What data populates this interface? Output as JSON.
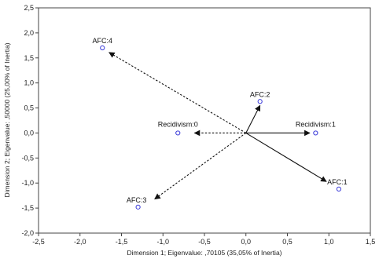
{
  "chart_data": {
    "type": "scatter",
    "title": "",
    "xlabel": "Dimension 1; Eigenvalue: ,70105 (35,05% of Inertia)",
    "ylabel": "Dimension 2; Eigenvalue: ,50000 (25,00% of Inertia)",
    "xlim": [
      -2.5,
      1.5
    ],
    "ylim": [
      -2.0,
      2.5
    ],
    "xticks": [
      -2.5,
      -2.0,
      -1.5,
      -1.0,
      -0.5,
      0.0,
      0.5,
      1.0,
      1.5
    ],
    "yticks": [
      -2.0,
      -1.5,
      -1.0,
      -0.5,
      0.0,
      0.5,
      1.0,
      1.5,
      2.0,
      2.5
    ],
    "xtick_labels": [
      "-2,5",
      "-2,0",
      "-1,5",
      "-1,0",
      "-0,5",
      "0,0",
      "0,5",
      "1,0",
      "1,5"
    ],
    "ytick_labels": [
      "-2,0",
      "-1,5",
      "-1,0",
      "-0,5",
      "0,0",
      "0,5",
      "1,0",
      "1,5",
      "2,0",
      "2,5"
    ],
    "grid": false,
    "points": [
      {
        "label": "AFC:4",
        "x": -1.73,
        "y": 1.7,
        "arrow_style": "dashed",
        "arrow_tip": [
          -1.65,
          1.61
        ]
      },
      {
        "label": "AFC:2",
        "x": 0.17,
        "y": 0.63,
        "arrow_style": "solid",
        "arrow_tip": [
          0.17,
          0.55
        ]
      },
      {
        "label": "Recidivism:0",
        "x": -0.82,
        "y": 0.0,
        "arrow_style": "dashed",
        "arrow_tip": [
          -0.62,
          0.0
        ]
      },
      {
        "label": "Recidivism:1",
        "x": 0.84,
        "y": 0.0,
        "arrow_style": "solid",
        "arrow_tip": [
          0.77,
          0.0
        ]
      },
      {
        "label": "AFC:1",
        "x": 1.12,
        "y": -1.12,
        "arrow_style": "solid",
        "arrow_tip": [
          0.97,
          -0.97
        ]
      },
      {
        "label": "AFC:3",
        "x": -1.3,
        "y": -1.48,
        "arrow_style": "dashed",
        "arrow_tip": [
          -1.1,
          -1.32
        ]
      }
    ],
    "colors": {
      "marker": "#3b3bd9",
      "arrow": "#111111",
      "axis": "#444444"
    }
  }
}
